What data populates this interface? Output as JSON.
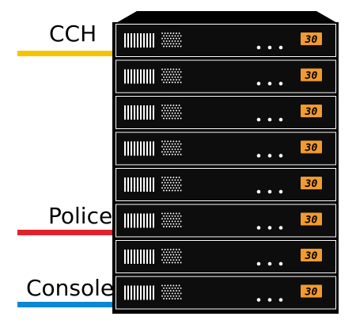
{
  "labels": [
    {
      "text": "CCH",
      "color": "#f5c400",
      "unit": 0
    },
    {
      "text": "Police",
      "color": "#e0222b",
      "unit": 5
    },
    {
      "text": "Console",
      "color": "#0a88d6",
      "unit": 7
    }
  ],
  "units": [
    {
      "display": "30"
    },
    {
      "display": "30"
    },
    {
      "display": "30"
    },
    {
      "display": "30"
    },
    {
      "display": "30"
    },
    {
      "display": "30"
    },
    {
      "display": "30"
    },
    {
      "display": "30"
    }
  ],
  "colors": {
    "rack": "#000000",
    "unit_body": "#0d0d0d",
    "accent": "#f29a2e",
    "detail": "#ffffff"
  },
  "icons": {
    "vent": "vent-slots-icon",
    "grille": "dot-grille-icon",
    "leds": "status-led-icon"
  }
}
